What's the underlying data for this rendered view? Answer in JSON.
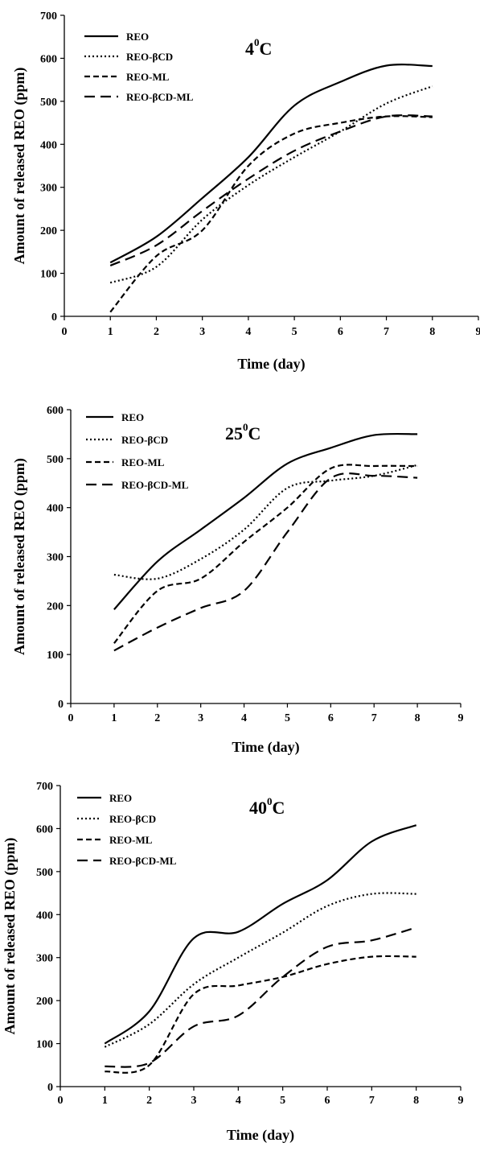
{
  "chart_data": [
    {
      "type": "line",
      "temperature": {
        "value": "4",
        "sup": "0",
        "unit": "C"
      },
      "xlabel": "Time (day)",
      "ylabel": "Amount of released REO (ppm)",
      "xlim": [
        0,
        9
      ],
      "ylim": [
        0,
        700
      ],
      "xticks": [
        0,
        1,
        2,
        3,
        4,
        5,
        6,
        7,
        8,
        9
      ],
      "yticks": [
        0,
        100,
        200,
        300,
        400,
        500,
        600,
        700
      ],
      "legend_position": "top-left",
      "x": [
        1,
        2,
        3,
        4,
        5,
        6,
        7,
        8
      ],
      "series": [
        {
          "name": "REO",
          "dash": "solid",
          "values": [
            125,
            185,
            275,
            370,
            490,
            545,
            583,
            582
          ]
        },
        {
          "name": "REO-βCD",
          "dash": "dotted",
          "values": [
            78,
            115,
            225,
            305,
            370,
            430,
            495,
            535
          ]
        },
        {
          "name": "REO-ML",
          "dash": "dashed",
          "values": [
            10,
            140,
            200,
            350,
            425,
            450,
            465,
            463
          ]
        },
        {
          "name": "REO-βCD-ML",
          "dash": "longdash",
          "values": [
            118,
            165,
            245,
            320,
            385,
            430,
            465,
            465
          ]
        }
      ]
    },
    {
      "type": "line",
      "temperature": {
        "value": "25",
        "sup": "0",
        "unit": "C"
      },
      "xlabel": "Time (day)",
      "ylabel": "Amount of released REO (ppm)",
      "xlim": [
        0,
        9
      ],
      "ylim": [
        0,
        600
      ],
      "xticks": [
        0,
        1,
        2,
        3,
        4,
        5,
        6,
        7,
        8,
        9
      ],
      "yticks": [
        0,
        100,
        200,
        300,
        400,
        500,
        600
      ],
      "legend_position": "top-left",
      "x": [
        1,
        2,
        3,
        4,
        5,
        6,
        7,
        8
      ],
      "series": [
        {
          "name": "REO",
          "dash": "solid",
          "values": [
            192,
            290,
            355,
            420,
            490,
            522,
            548,
            550
          ]
        },
        {
          "name": "REO-βCD",
          "dash": "dotted",
          "values": [
            263,
            255,
            295,
            355,
            440,
            455,
            465,
            487
          ]
        },
        {
          "name": "REO-ML",
          "dash": "dashed",
          "values": [
            123,
            230,
            255,
            330,
            400,
            480,
            485,
            485
          ]
        },
        {
          "name": "REO-βCD-ML",
          "dash": "longdash",
          "values": [
            108,
            155,
            195,
            230,
            350,
            460,
            465,
            461
          ]
        }
      ]
    },
    {
      "type": "line",
      "temperature": {
        "value": "40",
        "sup": "0",
        "unit": "C"
      },
      "xlabel": "Time (day)",
      "ylabel": "Amount of released REO (ppm)",
      "xlim": [
        0,
        9
      ],
      "ylim": [
        0,
        700
      ],
      "xticks": [
        0,
        1,
        2,
        3,
        4,
        5,
        6,
        7,
        8,
        9
      ],
      "yticks": [
        0,
        100,
        200,
        300,
        400,
        500,
        600,
        700
      ],
      "legend_position": "top-left",
      "x": [
        1,
        2,
        3,
        4,
        5,
        6,
        7,
        8
      ],
      "series": [
        {
          "name": "REO",
          "dash": "solid",
          "values": [
            100,
            175,
            345,
            360,
            425,
            480,
            570,
            608
          ]
        },
        {
          "name": "REO-βCD",
          "dash": "dotted",
          "values": [
            92,
            145,
            238,
            300,
            358,
            420,
            448,
            448
          ]
        },
        {
          "name": "REO-ML",
          "dash": "dashed",
          "values": [
            35,
            50,
            215,
            235,
            255,
            285,
            302,
            302
          ]
        },
        {
          "name": "REO-βCD-ML",
          "dash": "longdash",
          "values": [
            47,
            55,
            140,
            165,
            255,
            325,
            340,
            370
          ]
        }
      ]
    }
  ]
}
